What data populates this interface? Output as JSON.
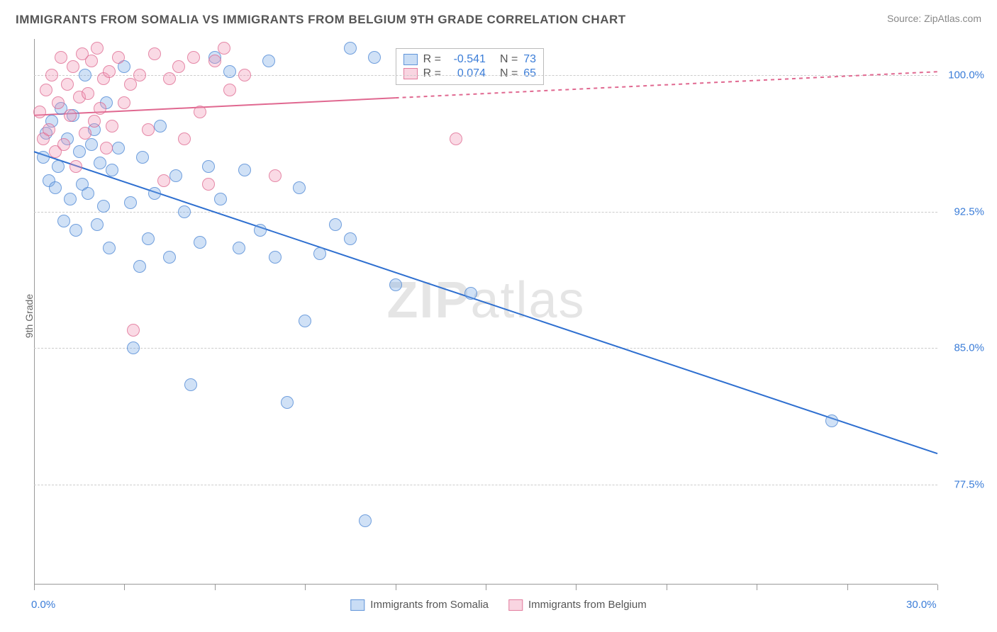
{
  "title": "IMMIGRANTS FROM SOMALIA VS IMMIGRANTS FROM BELGIUM 9TH GRADE CORRELATION CHART",
  "source": "Source: ZipAtlas.com",
  "y_axis_label": "9th Grade",
  "watermark_bold": "ZIP",
  "watermark_light": "atlas",
  "chart": {
    "type": "scatter",
    "xlim": [
      0,
      30
    ],
    "ylim": [
      72,
      102
    ],
    "xtick_labels": [
      {
        "pos": 0,
        "label": "0.0%"
      },
      {
        "pos": 30,
        "label": "30.0%"
      }
    ],
    "xticks_minor": [
      0,
      3,
      6,
      9,
      12,
      15,
      18,
      21,
      24,
      27,
      30
    ],
    "ytick_labels": [
      {
        "pos": 100,
        "label": "100.0%"
      },
      {
        "pos": 92.5,
        "label": "92.5%"
      },
      {
        "pos": 85,
        "label": "85.0%"
      },
      {
        "pos": 77.5,
        "label": "77.5%"
      }
    ],
    "grid_color": "#cccccc",
    "background_color": "#ffffff",
    "series": [
      {
        "name": "Immigrants from Somalia",
        "color_fill": "rgba(120,170,230,0.35)",
        "color_stroke": "rgba(70,130,210,0.7)",
        "class": "blue",
        "R": "-0.541",
        "N": "73",
        "trend": {
          "x1": 0,
          "y1": 95.8,
          "x2": 30,
          "y2": 79.2,
          "color": "#2e6fd0",
          "width": 2,
          "dash": "none"
        },
        "points": [
          [
            0.3,
            95.5
          ],
          [
            0.4,
            96.8
          ],
          [
            0.5,
            94.2
          ],
          [
            0.6,
            97.5
          ],
          [
            0.7,
            93.8
          ],
          [
            0.8,
            95.0
          ],
          [
            0.9,
            98.2
          ],
          [
            1.0,
            92.0
          ],
          [
            1.1,
            96.5
          ],
          [
            1.2,
            93.2
          ],
          [
            1.3,
            97.8
          ],
          [
            1.4,
            91.5
          ],
          [
            1.5,
            95.8
          ],
          [
            1.6,
            94.0
          ],
          [
            1.7,
            100.0
          ],
          [
            1.8,
            93.5
          ],
          [
            1.9,
            96.2
          ],
          [
            2.0,
            97.0
          ],
          [
            2.1,
            91.8
          ],
          [
            2.2,
            95.2
          ],
          [
            2.3,
            92.8
          ],
          [
            2.4,
            98.5
          ],
          [
            2.5,
            90.5
          ],
          [
            2.6,
            94.8
          ],
          [
            2.8,
            96.0
          ],
          [
            3.0,
            100.5
          ],
          [
            3.2,
            93.0
          ],
          [
            3.3,
            85.0
          ],
          [
            3.5,
            89.5
          ],
          [
            3.6,
            95.5
          ],
          [
            3.8,
            91.0
          ],
          [
            4.0,
            93.5
          ],
          [
            4.2,
            97.2
          ],
          [
            4.5,
            90.0
          ],
          [
            4.7,
            94.5
          ],
          [
            5.0,
            92.5
          ],
          [
            5.2,
            83.0
          ],
          [
            5.5,
            90.8
          ],
          [
            5.8,
            95.0
          ],
          [
            6.0,
            101.0
          ],
          [
            6.2,
            93.2
          ],
          [
            6.5,
            100.2
          ],
          [
            6.8,
            90.5
          ],
          [
            7.0,
            94.8
          ],
          [
            7.5,
            91.5
          ],
          [
            7.8,
            100.8
          ],
          [
            8.0,
            90.0
          ],
          [
            8.4,
            82.0
          ],
          [
            8.8,
            93.8
          ],
          [
            9.0,
            86.5
          ],
          [
            9.5,
            90.2
          ],
          [
            10.0,
            91.8
          ],
          [
            10.5,
            101.5
          ],
          [
            10.5,
            91.0
          ],
          [
            11.0,
            75.5
          ],
          [
            11.3,
            101.0
          ],
          [
            12.0,
            88.5
          ],
          [
            14.5,
            88.0
          ],
          [
            26.5,
            81.0
          ]
        ]
      },
      {
        "name": "Immigrants from Belgium",
        "color_fill": "rgba(240,150,180,0.35)",
        "color_stroke": "rgba(220,100,140,0.7)",
        "class": "pink",
        "R": "0.074",
        "N": "65",
        "trend": {
          "x1": 0,
          "y1": 97.8,
          "x2": 30,
          "y2": 100.2,
          "color": "#e06890",
          "width": 2,
          "dash": "4 4",
          "solid_until": 12
        },
        "points": [
          [
            0.2,
            98.0
          ],
          [
            0.3,
            96.5
          ],
          [
            0.4,
            99.2
          ],
          [
            0.5,
            97.0
          ],
          [
            0.6,
            100.0
          ],
          [
            0.7,
            95.8
          ],
          [
            0.8,
            98.5
          ],
          [
            0.9,
            101.0
          ],
          [
            1.0,
            96.2
          ],
          [
            1.1,
            99.5
          ],
          [
            1.2,
            97.8
          ],
          [
            1.3,
            100.5
          ],
          [
            1.4,
            95.0
          ],
          [
            1.5,
            98.8
          ],
          [
            1.6,
            101.2
          ],
          [
            1.7,
            96.8
          ],
          [
            1.8,
            99.0
          ],
          [
            1.9,
            100.8
          ],
          [
            2.0,
            97.5
          ],
          [
            2.1,
            101.5
          ],
          [
            2.2,
            98.2
          ],
          [
            2.3,
            99.8
          ],
          [
            2.4,
            96.0
          ],
          [
            2.5,
            100.2
          ],
          [
            2.6,
            97.2
          ],
          [
            2.8,
            101.0
          ],
          [
            3.0,
            98.5
          ],
          [
            3.2,
            99.5
          ],
          [
            3.3,
            86.0
          ],
          [
            3.5,
            100.0
          ],
          [
            3.8,
            97.0
          ],
          [
            4.0,
            101.2
          ],
          [
            4.3,
            94.2
          ],
          [
            4.5,
            99.8
          ],
          [
            4.8,
            100.5
          ],
          [
            5.0,
            96.5
          ],
          [
            5.3,
            101.0
          ],
          [
            5.5,
            98.0
          ],
          [
            5.8,
            94.0
          ],
          [
            6.0,
            100.8
          ],
          [
            6.3,
            101.5
          ],
          [
            6.5,
            99.2
          ],
          [
            7.0,
            100.0
          ],
          [
            8.0,
            94.5
          ],
          [
            14.0,
            96.5
          ]
        ]
      }
    ]
  },
  "stats_box": {
    "R_label": "R =",
    "N_label": "N ="
  },
  "legend": {
    "items": [
      {
        "label": "Immigrants from Somalia",
        "class": "blue"
      },
      {
        "label": "Immigrants from Belgium",
        "class": "pink"
      }
    ]
  }
}
